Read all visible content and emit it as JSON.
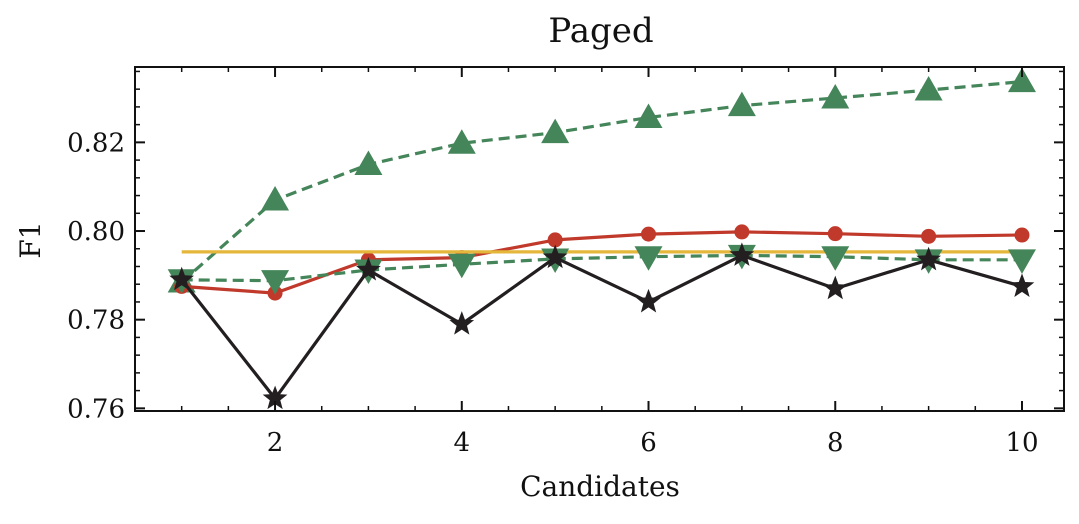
{
  "chart_data": {
    "type": "line",
    "title": "Paged",
    "xlabel": "Candidates",
    "ylabel": "F1",
    "xlim": [
      0.5,
      10.45
    ],
    "ylim": [
      0.7594,
      0.837
    ],
    "xticks": [
      2,
      4,
      6,
      8,
      10
    ],
    "xtick_labels": [
      "2",
      "4",
      "6",
      "8",
      "10"
    ],
    "yticks": [
      0.76,
      0.78,
      0.8,
      0.82
    ],
    "ytick_labels": [
      "0.76",
      "0.78",
      "0.80",
      "0.82"
    ],
    "grid": false,
    "legend": "none",
    "x": [
      1,
      2,
      3,
      4,
      5,
      6,
      7,
      8,
      9,
      10
    ],
    "series": [
      {
        "color": "#45855a",
        "marker": "triangle-up",
        "linestyle": "dashed",
        "values": [
          0.7885,
          0.807,
          0.815,
          0.8198,
          0.8222,
          0.8256,
          0.8283,
          0.83,
          0.8318,
          0.8337
        ]
      },
      {
        "color": "#c0392b",
        "marker": "circle",
        "linestyle": "solid",
        "values": [
          0.7875,
          0.786,
          0.7935,
          0.794,
          0.798,
          0.7993,
          0.7998,
          0.7994,
          0.7988,
          0.7991
        ]
      },
      {
        "color": "#e4b63a",
        "marker": "none",
        "linestyle": "solid",
        "values": [
          0.7953,
          0.7953,
          0.7953,
          0.7953,
          0.7953,
          0.7953,
          0.7953,
          0.7953,
          0.7953,
          0.7953
        ]
      },
      {
        "color": "#45855a",
        "marker": "triangle-down",
        "linestyle": "dashed",
        "values": [
          0.789,
          0.7888,
          0.7912,
          0.7925,
          0.7937,
          0.7942,
          0.7945,
          0.7942,
          0.7935,
          0.7935
        ]
      },
      {
        "color": "#231f20",
        "marker": "star",
        "linestyle": "solid",
        "values": [
          0.789,
          0.7622,
          0.7912,
          0.779,
          0.794,
          0.784,
          0.7945,
          0.787,
          0.7935,
          0.7875
        ]
      }
    ]
  }
}
